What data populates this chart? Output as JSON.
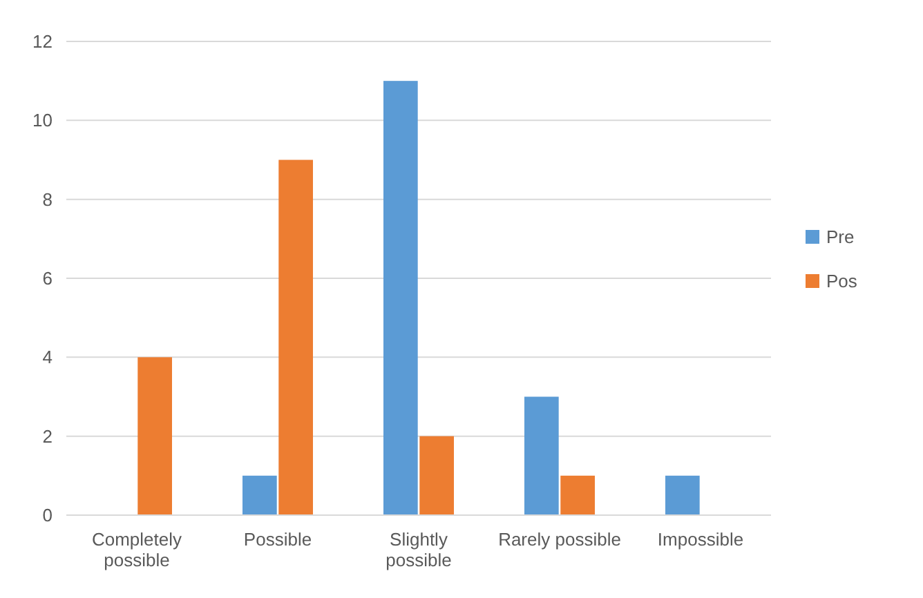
{
  "chart_data": {
    "type": "bar",
    "categories": [
      "Completely possible",
      "Possible",
      "Slightly possible",
      "Rarely possible",
      "Impossible"
    ],
    "series": [
      {
        "name": "Pre",
        "color": "#5b9bd5",
        "values": [
          0,
          1,
          11,
          3,
          1
        ]
      },
      {
        "name": "Pos",
        "color": "#ed7d31",
        "values": [
          4,
          9,
          2,
          1,
          0
        ]
      }
    ],
    "ylim": [
      0,
      12
    ],
    "yticks": [
      0,
      2,
      4,
      6,
      8,
      10,
      12
    ],
    "grid": "y",
    "legend": "right"
  }
}
